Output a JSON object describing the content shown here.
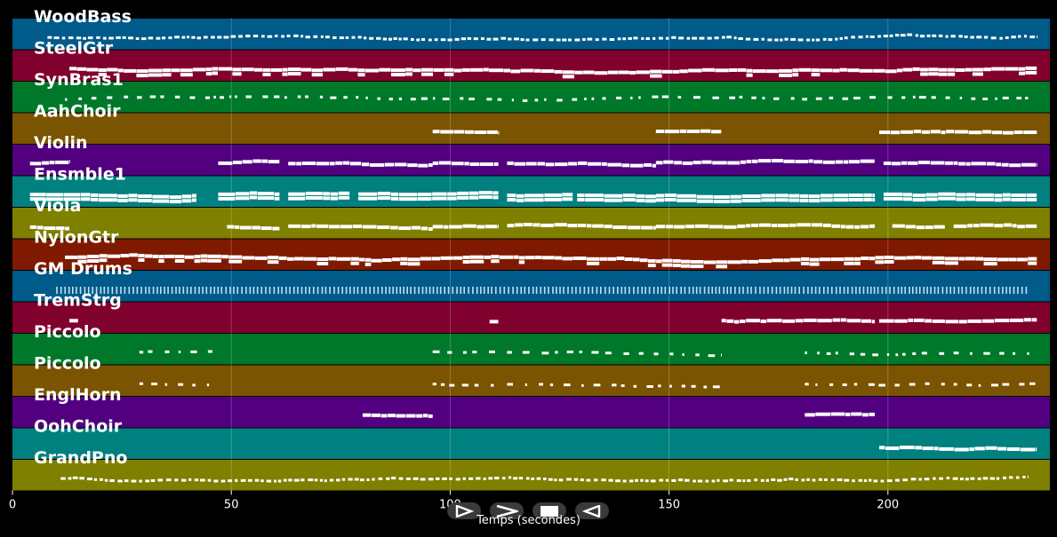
{
  "chart_data": {
    "type": "piano-roll",
    "xlabel": "Temps (secondes)",
    "xlim": [
      0,
      237
    ],
    "xticks": [
      0,
      50,
      100,
      150,
      200
    ],
    "tick_labels": [
      "0",
      "50",
      "100",
      "150",
      "200"
    ],
    "note_color": "#ffffff",
    "tracks": [
      {
        "label": "WoodBass",
        "color": "#005a8a",
        "style": "dots",
        "segments": [
          [
            8,
            234
          ]
        ],
        "thick": 3
      },
      {
        "label": "SteelGtr",
        "color": "#80002e",
        "style": "dense",
        "segments": [
          [
            13,
            234
          ]
        ],
        "thick": 4
      },
      {
        "label": "SynBras1",
        "color": "#00782a",
        "style": "sparse",
        "segments": [
          [
            12,
            232
          ]
        ],
        "thick": 3
      },
      {
        "label": "AahChoir",
        "color": "#7a5400",
        "style": "melody",
        "segments": [
          [
            96,
            111
          ],
          [
            147,
            162
          ],
          [
            198,
            234
          ]
        ],
        "thick": 4
      },
      {
        "label": "Violin",
        "color": "#520080",
        "style": "melody",
        "segments": [
          [
            4,
            13
          ],
          [
            47,
            61
          ],
          [
            63,
            96
          ],
          [
            96,
            111
          ],
          [
            113,
            147
          ],
          [
            147,
            197
          ],
          [
            199,
            234
          ]
        ],
        "thick": 4
      },
      {
        "label": "Ensmble1",
        "color": "#00807f",
        "style": "chords",
        "segments": [
          [
            4,
            42
          ],
          [
            47,
            61
          ],
          [
            63,
            77
          ],
          [
            79,
            96
          ],
          [
            96,
            111
          ],
          [
            113,
            128
          ],
          [
            129,
            147
          ],
          [
            147,
            197
          ],
          [
            199,
            234
          ]
        ],
        "thick": 4
      },
      {
        "label": "Viola",
        "color": "#7f7f00",
        "style": "melody",
        "segments": [
          [
            4,
            13
          ],
          [
            49,
            61
          ],
          [
            63,
            96
          ],
          [
            96,
            111
          ],
          [
            113,
            147
          ],
          [
            147,
            197
          ],
          [
            201,
            213
          ],
          [
            215,
            234
          ]
        ],
        "thick": 4
      },
      {
        "label": "NylonGtr",
        "color": "#7f1a00",
        "style": "dense",
        "segments": [
          [
            12,
            234
          ]
        ],
        "thick": 4
      },
      {
        "label": "GM Drums",
        "color": "#005a8a",
        "style": "drums",
        "segments": [
          [
            10,
            232
          ]
        ],
        "thick": 8
      },
      {
        "label": "TremStrg",
        "color": "#80002e",
        "style": "melody",
        "segments": [
          [
            13,
            15
          ],
          [
            109,
            111
          ],
          [
            162,
            197
          ],
          [
            198,
            234
          ]
        ],
        "thick": 4
      },
      {
        "label": "Piccolo",
        "color": "#00782a",
        "style": "sparse",
        "segments": [
          [
            29,
            46
          ],
          [
            96,
            111
          ],
          [
            113,
            162
          ],
          [
            181,
            213
          ],
          [
            215,
            234
          ]
        ],
        "thick": 3
      },
      {
        "label": "Piccolo",
        "color": "#7a5400",
        "style": "sparse",
        "segments": [
          [
            29,
            46
          ],
          [
            96,
            111
          ],
          [
            113,
            162
          ],
          [
            181,
            213
          ],
          [
            215,
            234
          ]
        ],
        "thick": 3
      },
      {
        "label": "EnglHorn",
        "color": "#520080",
        "style": "melody",
        "segments": [
          [
            80,
            96
          ],
          [
            181,
            197
          ]
        ],
        "thick": 4
      },
      {
        "label": "OohChoir",
        "color": "#00807f",
        "style": "melody",
        "segments": [
          [
            198,
            234
          ]
        ],
        "thick": 4
      },
      {
        "label": "GrandPno",
        "color": "#7f7f00",
        "style": "dots",
        "segments": [
          [
            11,
            232
          ]
        ],
        "thick": 3
      }
    ]
  },
  "transport": {
    "play_icon": "play-outline-icon",
    "forward_icon": "forward-chevron-icon",
    "stop_icon": "stop-icon",
    "back_icon": "back-outline-icon"
  }
}
